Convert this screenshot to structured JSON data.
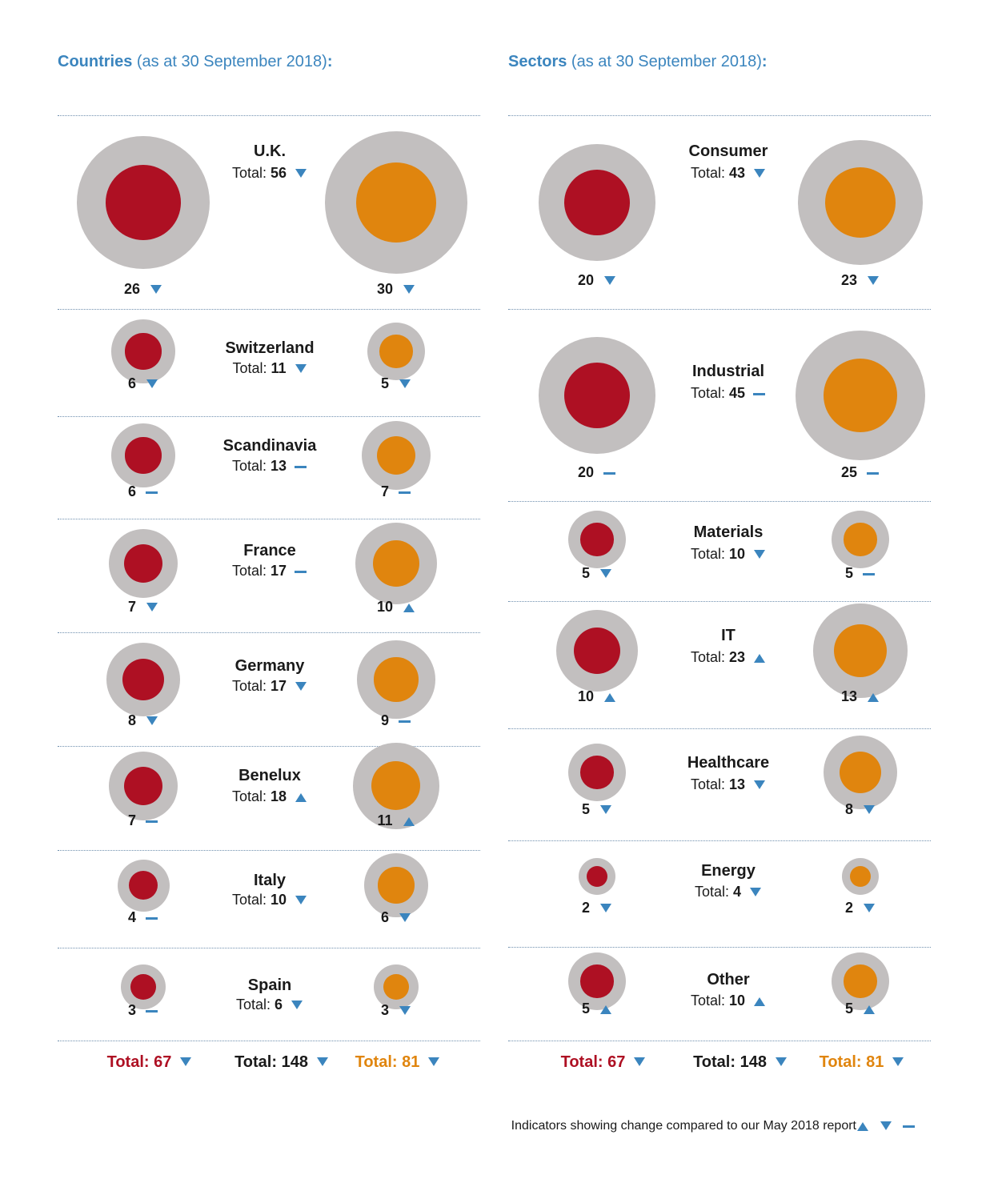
{
  "countries": {
    "title_bold": "Countries",
    "title_rest": " (as at 30 September 2018)",
    "title_colon": ":",
    "rows": [
      {
        "name": "U.K.",
        "total": 56,
        "total_ind": "down",
        "left": 26,
        "left_ind": "down",
        "right": 30,
        "right_ind": "down"
      },
      {
        "name": "Switzerland",
        "total": 11,
        "total_ind": "down",
        "left": 6,
        "left_ind": "down",
        "right": 5,
        "right_ind": "down"
      },
      {
        "name": "Scandinavia",
        "total": 13,
        "total_ind": "same",
        "left": 6,
        "left_ind": "same",
        "right": 7,
        "right_ind": "same"
      },
      {
        "name": "France",
        "total": 17,
        "total_ind": "same",
        "left": 7,
        "left_ind": "down",
        "right": 10,
        "right_ind": "up"
      },
      {
        "name": "Germany",
        "total": 17,
        "total_ind": "down",
        "left": 8,
        "left_ind": "down",
        "right": 9,
        "right_ind": "same"
      },
      {
        "name": "Benelux",
        "total": 18,
        "total_ind": "up",
        "left": 7,
        "left_ind": "same",
        "right": 11,
        "right_ind": "up"
      },
      {
        "name": "Italy",
        "total": 10,
        "total_ind": "down",
        "left": 4,
        "left_ind": "same",
        "right": 6,
        "right_ind": "down"
      },
      {
        "name": "Spain",
        "total": 6,
        "total_ind": "down",
        "left": 3,
        "left_ind": "same",
        "right": 3,
        "right_ind": "down"
      }
    ],
    "totals": {
      "left": "Total: 67",
      "left_ind": "down",
      "mid": "Total: 148",
      "mid_ind": "down",
      "right": "Total: 81",
      "right_ind": "down"
    }
  },
  "sectors": {
    "title_bold": "Sectors",
    "title_rest": " (as at 30 September 2018)",
    "title_colon": ":",
    "rows": [
      {
        "name": "Consumer",
        "total": 43,
        "total_ind": "down",
        "left": 20,
        "left_ind": "down",
        "right": 23,
        "right_ind": "down"
      },
      {
        "name": "Industrial",
        "total": 45,
        "total_ind": "same",
        "left": 20,
        "left_ind": "same",
        "right": 25,
        "right_ind": "same"
      },
      {
        "name": "Materials",
        "total": 10,
        "total_ind": "down",
        "left": 5,
        "left_ind": "down",
        "right": 5,
        "right_ind": "same"
      },
      {
        "name": "IT",
        "total": 23,
        "total_ind": "up",
        "left": 10,
        "left_ind": "up",
        "right": 13,
        "right_ind": "up"
      },
      {
        "name": "Healthcare",
        "total": 13,
        "total_ind": "down",
        "left": 5,
        "left_ind": "down",
        "right": 8,
        "right_ind": "down"
      },
      {
        "name": "Energy",
        "total": 4,
        "total_ind": "down",
        "left": 2,
        "left_ind": "down",
        "right": 2,
        "right_ind": "down"
      },
      {
        "name": "Other",
        "total": 10,
        "total_ind": "up",
        "left": 5,
        "left_ind": "up",
        "right": 5,
        "right_ind": "up"
      }
    ],
    "totals": {
      "left": "Total: 67",
      "left_ind": "down",
      "mid": "Total: 148",
      "mid_ind": "down",
      "right": "Total: 81",
      "right_ind": "down"
    }
  },
  "total_prefix": "Total: ",
  "colors": {
    "left_series": "#ae1023",
    "right_series": "#e0850e",
    "outer_ring": "#c2bfbf",
    "indicator": "#3b85be"
  },
  "footer": {
    "text": "Indicators showing change compared to our May 2018 report",
    "legend": [
      "up",
      "down",
      "same"
    ]
  },
  "chart_data": [
    {
      "type": "bubble",
      "title": "Countries (as at 30 September 2018):",
      "categories": [
        "U.K.",
        "Switzerland",
        "Scandinavia",
        "France",
        "Germany",
        "Benelux",
        "Italy",
        "Spain"
      ],
      "totals": [
        56,
        11,
        13,
        17,
        17,
        18,
        10,
        6
      ],
      "series": [
        {
          "values": [
            26,
            6,
            6,
            7,
            8,
            7,
            4,
            3
          ]
        },
        {
          "values": [
            30,
            5,
            7,
            10,
            9,
            11,
            6,
            3
          ]
        }
      ],
      "grand_totals": [
        67,
        148,
        81
      ]
    },
    {
      "type": "bubble",
      "title": "Sectors (as at 30 September 2018):",
      "categories": [
        "Consumer",
        "Industrial",
        "Materials",
        "IT",
        "Healthcare",
        "Energy",
        "Other"
      ],
      "totals": [
        43,
        45,
        10,
        23,
        13,
        4,
        10
      ],
      "series": [
        {
          "values": [
            20,
            20,
            5,
            10,
            5,
            2,
            5
          ]
        },
        {
          "values": [
            23,
            25,
            5,
            13,
            8,
            2,
            5
          ]
        }
      ],
      "grand_totals": [
        67,
        148,
        81
      ]
    }
  ]
}
